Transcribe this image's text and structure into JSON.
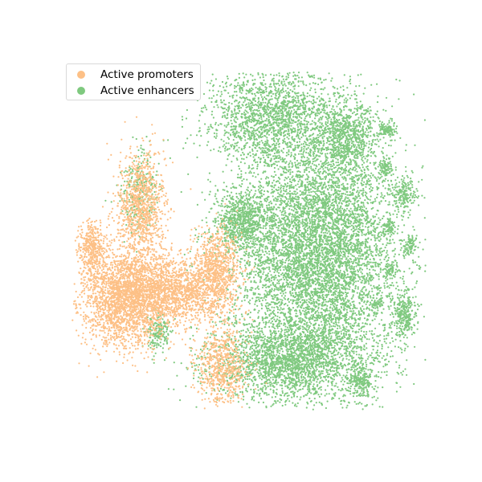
{
  "chart_data": {
    "type": "scatter",
    "title": "",
    "xlabel": "",
    "ylabel": "",
    "axes_visible": false,
    "grid": false,
    "legend_position": "upper-left",
    "series": [
      {
        "name": "Active promoters",
        "color": "#FDC086",
        "approx_point_count": 6500,
        "clusters": [
          {
            "cx": 0.26,
            "cy": 0.62,
            "sx": 0.045,
            "sy": 0.05,
            "weight": 0.35
          },
          {
            "cx": 0.29,
            "cy": 0.43,
            "sx": 0.025,
            "sy": 0.06,
            "weight": 0.15
          },
          {
            "cx": 0.36,
            "cy": 0.6,
            "sx": 0.05,
            "sy": 0.035,
            "weight": 0.22
          },
          {
            "cx": 0.45,
            "cy": 0.56,
            "sx": 0.025,
            "sy": 0.045,
            "weight": 0.12
          },
          {
            "cx": 0.46,
            "cy": 0.76,
            "sx": 0.025,
            "sy": 0.04,
            "weight": 0.1
          },
          {
            "cx": 0.19,
            "cy": 0.52,
            "sx": 0.015,
            "sy": 0.03,
            "weight": 0.06
          }
        ]
      },
      {
        "name": "Active enhancers",
        "color": "#7FC97F",
        "approx_point_count": 14000,
        "clusters": [
          {
            "cx": 0.66,
            "cy": 0.52,
            "sx": 0.085,
            "sy": 0.13,
            "weight": 0.52
          },
          {
            "cx": 0.57,
            "cy": 0.24,
            "sx": 0.07,
            "sy": 0.05,
            "weight": 0.12
          },
          {
            "cx": 0.6,
            "cy": 0.75,
            "sx": 0.08,
            "sy": 0.04,
            "weight": 0.15
          },
          {
            "cx": 0.5,
            "cy": 0.46,
            "sx": 0.025,
            "sy": 0.03,
            "weight": 0.05
          },
          {
            "cx": 0.72,
            "cy": 0.28,
            "sx": 0.03,
            "sy": 0.04,
            "weight": 0.05
          },
          {
            "cx": 0.84,
            "cy": 0.65,
            "sx": 0.012,
            "sy": 0.025,
            "weight": 0.02
          },
          {
            "cx": 0.75,
            "cy": 0.79,
            "sx": 0.012,
            "sy": 0.02,
            "weight": 0.015
          },
          {
            "cx": 0.84,
            "cy": 0.4,
            "sx": 0.012,
            "sy": 0.015,
            "weight": 0.01
          },
          {
            "cx": 0.8,
            "cy": 0.35,
            "sx": 0.008,
            "sy": 0.01,
            "weight": 0.006
          },
          {
            "cx": 0.8,
            "cy": 0.27,
            "sx": 0.008,
            "sy": 0.008,
            "weight": 0.005
          },
          {
            "cx": 0.85,
            "cy": 0.51,
            "sx": 0.008,
            "sy": 0.01,
            "weight": 0.006
          },
          {
            "cx": 0.81,
            "cy": 0.56,
            "sx": 0.006,
            "sy": 0.008,
            "weight": 0.004
          },
          {
            "cx": 0.78,
            "cy": 0.63,
            "sx": 0.006,
            "sy": 0.006,
            "weight": 0.003
          },
          {
            "cx": 0.81,
            "cy": 0.47,
            "sx": 0.006,
            "sy": 0.008,
            "weight": 0.004
          },
          {
            "cx": 0.81,
            "cy": 0.27,
            "sx": 0.006,
            "sy": 0.006,
            "weight": 0.003
          },
          {
            "cx": 0.33,
            "cy": 0.69,
            "sx": 0.012,
            "sy": 0.02,
            "weight": 0.012
          },
          {
            "cx": 0.29,
            "cy": 0.4,
            "sx": 0.02,
            "sy": 0.04,
            "weight": 0.02
          }
        ]
      }
    ]
  },
  "legend": {
    "items": [
      {
        "label": "Active promoters",
        "color": "#FDC086"
      },
      {
        "label": "Active enhancers",
        "color": "#7FC97F"
      }
    ]
  }
}
